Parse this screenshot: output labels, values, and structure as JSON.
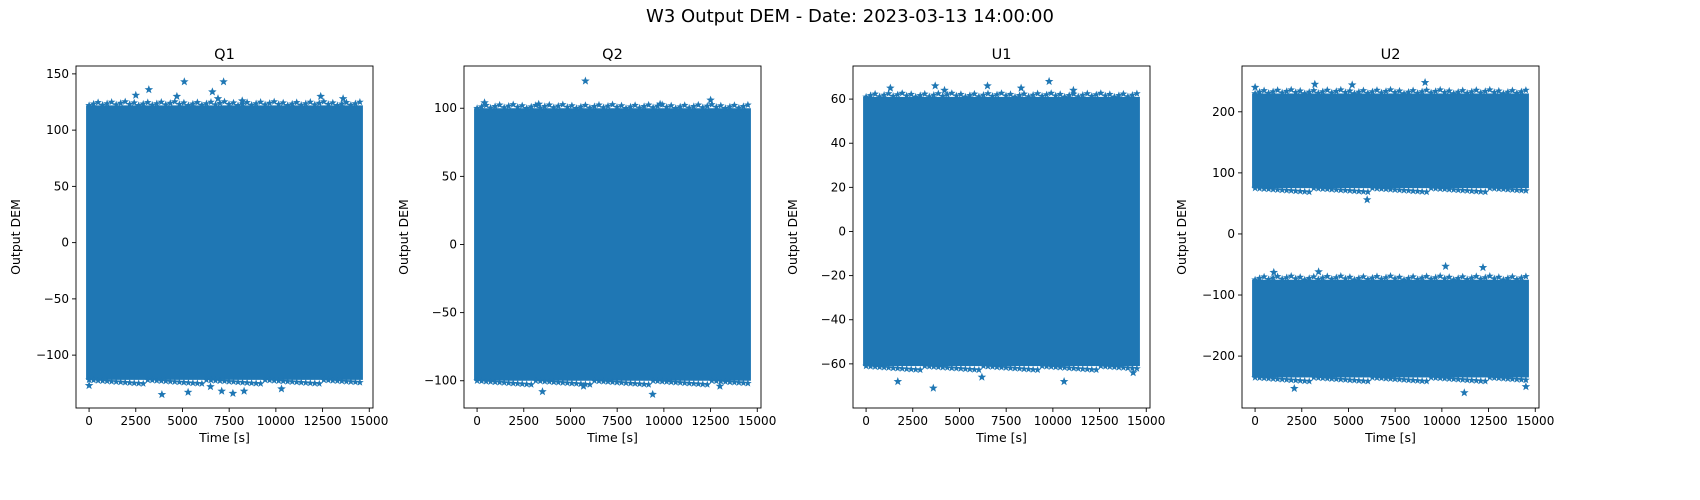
{
  "figure": {
    "suptitle": "W3 Output DEM - Date: 2023-03-13 14:00:00"
  },
  "chart_data": [
    {
      "type": "scatter",
      "title": "Q1",
      "xlabel": "Time [s]",
      "ylabel": "Output DEM",
      "marker": "star",
      "color": "#1f77b4",
      "xlim": [
        -700,
        15200
      ],
      "ylim": [
        -147,
        157
      ],
      "xticks": [
        0,
        2500,
        5000,
        7500,
        10000,
        12500,
        15000
      ],
      "yticks": [
        -100,
        -50,
        0,
        50,
        100,
        150
      ],
      "x_range": [
        0,
        14500
      ],
      "bands": [
        [
          -122,
          122
        ]
      ],
      "outliers": [
        [
          3200,
          136
        ],
        [
          5100,
          143
        ],
        [
          7200,
          143
        ],
        [
          2500,
          131
        ],
        [
          6600,
          134
        ],
        [
          6900,
          128
        ],
        [
          4700,
          130
        ],
        [
          8200,
          126
        ],
        [
          12400,
          130
        ],
        [
          13600,
          128
        ],
        [
          0,
          -127
        ],
        [
          3900,
          -135
        ],
        [
          5300,
          -133
        ],
        [
          7100,
          -132
        ],
        [
          7700,
          -134
        ],
        [
          8300,
          -132
        ],
        [
          10300,
          -130
        ],
        [
          6500,
          -128
        ]
      ]
    },
    {
      "type": "scatter",
      "title": "Q2",
      "xlabel": "Time [s]",
      "ylabel": "Output DEM",
      "marker": "star",
      "color": "#1f77b4",
      "xlim": [
        -700,
        15200
      ],
      "ylim": [
        -120,
        131
      ],
      "xticks": [
        0,
        2500,
        5000,
        7500,
        10000,
        12500,
        15000
      ],
      "yticks": [
        -100,
        -50,
        0,
        50,
        100
      ],
      "x_range": [
        0,
        14500
      ],
      "bands": [
        [
          -100,
          100
        ]
      ],
      "outliers": [
        [
          5800,
          120
        ],
        [
          400,
          104
        ],
        [
          3300,
          103
        ],
        [
          12500,
          106
        ],
        [
          9800,
          103
        ],
        [
          3500,
          -108
        ],
        [
          9400,
          -110
        ],
        [
          5700,
          -104
        ],
        [
          13000,
          -104
        ]
      ]
    },
    {
      "type": "scatter",
      "title": "U1",
      "xlabel": "Time [s]",
      "ylabel": "Output DEM",
      "marker": "star",
      "color": "#1f77b4",
      "xlim": [
        -700,
        15200
      ],
      "ylim": [
        -80,
        75
      ],
      "xticks": [
        0,
        2500,
        5000,
        7500,
        10000,
        12500,
        15000
      ],
      "yticks": [
        -60,
        -40,
        -20,
        0,
        20,
        40,
        60
      ],
      "x_range": [
        0,
        14500
      ],
      "bands": [
        [
          -61,
          61
        ]
      ],
      "outliers": [
        [
          9800,
          68
        ],
        [
          1300,
          65
        ],
        [
          3700,
          66
        ],
        [
          6500,
          66
        ],
        [
          8300,
          65
        ],
        [
          4200,
          64
        ],
        [
          11100,
          64
        ],
        [
          3600,
          -71
        ],
        [
          1700,
          -68
        ],
        [
          6200,
          -66
        ],
        [
          10600,
          -68
        ],
        [
          14300,
          -64
        ]
      ]
    },
    {
      "type": "scatter",
      "title": "U2",
      "xlabel": "Time [s]",
      "ylabel": "Output DEM",
      "marker": "star",
      "color": "#1f77b4",
      "xlim": [
        -700,
        15200
      ],
      "ylim": [
        -285,
        275
      ],
      "xticks": [
        0,
        2500,
        5000,
        7500,
        10000,
        12500,
        15000
      ],
      "yticks": [
        -200,
        -100,
        0,
        100,
        200
      ],
      "x_range": [
        0,
        14500
      ],
      "bands": [
        [
          75,
          230
        ],
        [
          -235,
          -75
        ]
      ],
      "outliers": [
        [
          9100,
          248
        ],
        [
          3200,
          245
        ],
        [
          5200,
          244
        ],
        [
          0,
          240
        ],
        [
          6000,
          56
        ],
        [
          10200,
          -53
        ],
        [
          12200,
          -55
        ],
        [
          1000,
          -63
        ],
        [
          3400,
          -62
        ],
        [
          2100,
          -253
        ],
        [
          11200,
          -260
        ],
        [
          14500,
          -250
        ]
      ]
    }
  ]
}
